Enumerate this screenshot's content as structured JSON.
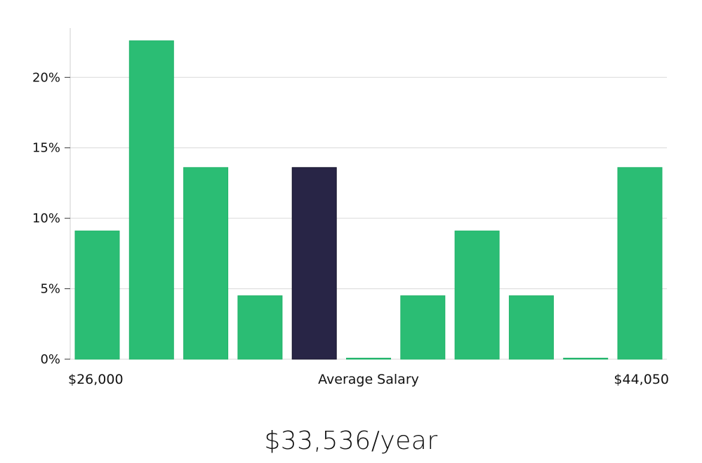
{
  "chart_data": {
    "type": "bar",
    "title": "",
    "xlabel": "Average Salary",
    "ylabel": "",
    "x_min_label": "$26,000",
    "x_max_label": "$44,050",
    "ylim": [
      0,
      23.5
    ],
    "yticks": [
      0,
      5,
      10,
      15,
      20
    ],
    "ytick_labels": [
      "0%",
      "5%",
      "10%",
      "15%",
      "20%"
    ],
    "grid": true,
    "values": [
      9.1,
      22.6,
      13.6,
      4.5,
      13.6,
      0,
      4.5,
      9.1,
      4.5,
      0,
      13.6
    ],
    "highlight_index": 4,
    "colors": {
      "bar": "#2bbd74",
      "bar_edge": "#22b36a",
      "highlight": "#282546",
      "highlight_edge": "#15132b",
      "grid": "#d9d9d9",
      "axis": "#cfcfcf"
    }
  },
  "summary": {
    "salary": "$33,536/year"
  }
}
